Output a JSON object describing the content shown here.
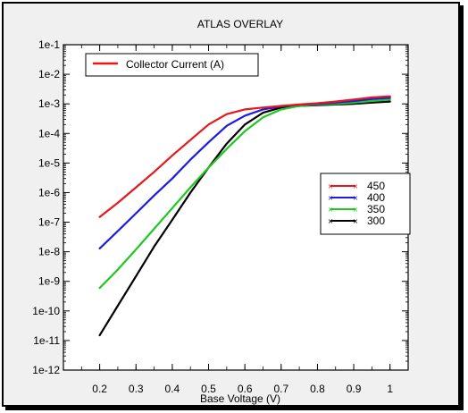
{
  "chart_data": {
    "type": "line",
    "title": "ATLAS OVERLAY",
    "xlabel": "Base Voltage (V)",
    "ylabel": "",
    "yscale": "log",
    "xlim": [
      0.1,
      1.05
    ],
    "ylim": [
      1e-12,
      0.1
    ],
    "xticks": [
      0.2,
      0.3,
      0.4,
      0.5,
      0.6,
      0.7,
      0.8,
      0.9,
      1
    ],
    "xtick_labels": [
      "0.2",
      "0.3",
      "0.4",
      "0.5",
      "0.6",
      "0.7",
      "0.8",
      "0.9",
      "1"
    ],
    "yticks": [
      1e-12,
      1e-11,
      1e-10,
      1e-09,
      1e-08,
      1e-07,
      1e-06,
      1e-05,
      0.0001,
      0.001,
      0.01,
      0.1
    ],
    "ytick_labels": [
      "1e-12",
      "1e-11",
      "1e-10",
      "1e-9",
      "1e-8",
      "1e-7",
      "1e-6",
      "1e-5",
      "1e-4",
      "1e-3",
      "1e-2",
      "1e-1"
    ],
    "grid": false,
    "top_legend": {
      "label": "Collector Current (A)",
      "color": "#e8171c",
      "placement": "top-left"
    },
    "legend_placement": "right",
    "x": [
      0.2,
      0.25,
      0.3,
      0.35,
      0.4,
      0.45,
      0.5,
      0.55,
      0.6,
      0.65,
      0.7,
      0.75,
      0.8,
      0.85,
      0.9,
      0.95,
      1.0
    ],
    "series": [
      {
        "name": "450",
        "color": "#e8171c",
        "values": [
          1.5e-07,
          4.5e-07,
          1.5e-06,
          5e-06,
          1.8e-05,
          6e-05,
          0.0002,
          0.00045,
          0.00065,
          0.00075,
          0.00085,
          0.00095,
          0.00105,
          0.0012,
          0.0014,
          0.00165,
          0.0018
        ]
      },
      {
        "name": "400",
        "color": "#1c1ce0",
        "values": [
          1.3e-08,
          5e-08,
          2e-07,
          8e-07,
          3e-06,
          1.3e-05,
          5e-05,
          0.00018,
          0.0004,
          0.00065,
          0.00082,
          0.00093,
          0.001,
          0.0011,
          0.00125,
          0.00145,
          0.0016
        ]
      },
      {
        "name": "350",
        "color": "#1ec81e",
        "values": [
          6e-10,
          2.5e-09,
          1.2e-08,
          6e-08,
          3e-07,
          1.5e-06,
          7e-06,
          3e-05,
          0.00012,
          0.00035,
          0.00065,
          0.00085,
          0.00095,
          0.001,
          0.0011,
          0.00125,
          0.0014
        ]
      },
      {
        "name": "300",
        "color": "#000000",
        "values": [
          1.5e-11,
          1.5e-10,
          1.5e-09,
          1.5e-08,
          1.2e-07,
          1e-06,
          7e-06,
          4.5e-05,
          0.0002,
          0.0005,
          0.00075,
          0.00085,
          0.0009,
          0.00095,
          0.001,
          0.0011,
          0.0012
        ]
      }
    ]
  }
}
